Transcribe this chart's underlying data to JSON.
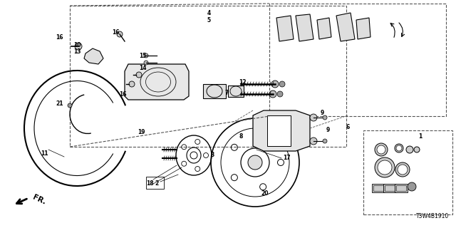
{
  "diagram_id": "T3W4B1910",
  "background_color": "#ffffff",
  "line_color": "#000000",
  "figsize": [
    6.4,
    3.2
  ],
  "dpi": 100,
  "part_labels": [
    [
      "1",
      590,
      192
    ],
    [
      "2",
      220,
      258
    ],
    [
      "3",
      298,
      218
    ],
    [
      "4",
      293,
      18
    ],
    [
      "5",
      293,
      28
    ],
    [
      "6",
      488,
      178
    ],
    [
      "7",
      318,
      130
    ],
    [
      "8",
      338,
      192
    ],
    [
      "9",
      452,
      158
    ],
    [
      "9",
      460,
      182
    ],
    [
      "10",
      108,
      63
    ],
    [
      "11",
      62,
      215
    ],
    [
      "12",
      340,
      115
    ],
    [
      "13",
      108,
      72
    ],
    [
      "14",
      200,
      95
    ],
    [
      "15",
      200,
      78
    ],
    [
      "16",
      83,
      52
    ],
    [
      "16",
      162,
      45
    ],
    [
      "16",
      172,
      132
    ],
    [
      "17",
      402,
      222
    ],
    [
      "18",
      210,
      258
    ],
    [
      "19",
      198,
      185
    ],
    [
      "20",
      372,
      272
    ],
    [
      "21",
      84,
      145
    ]
  ]
}
